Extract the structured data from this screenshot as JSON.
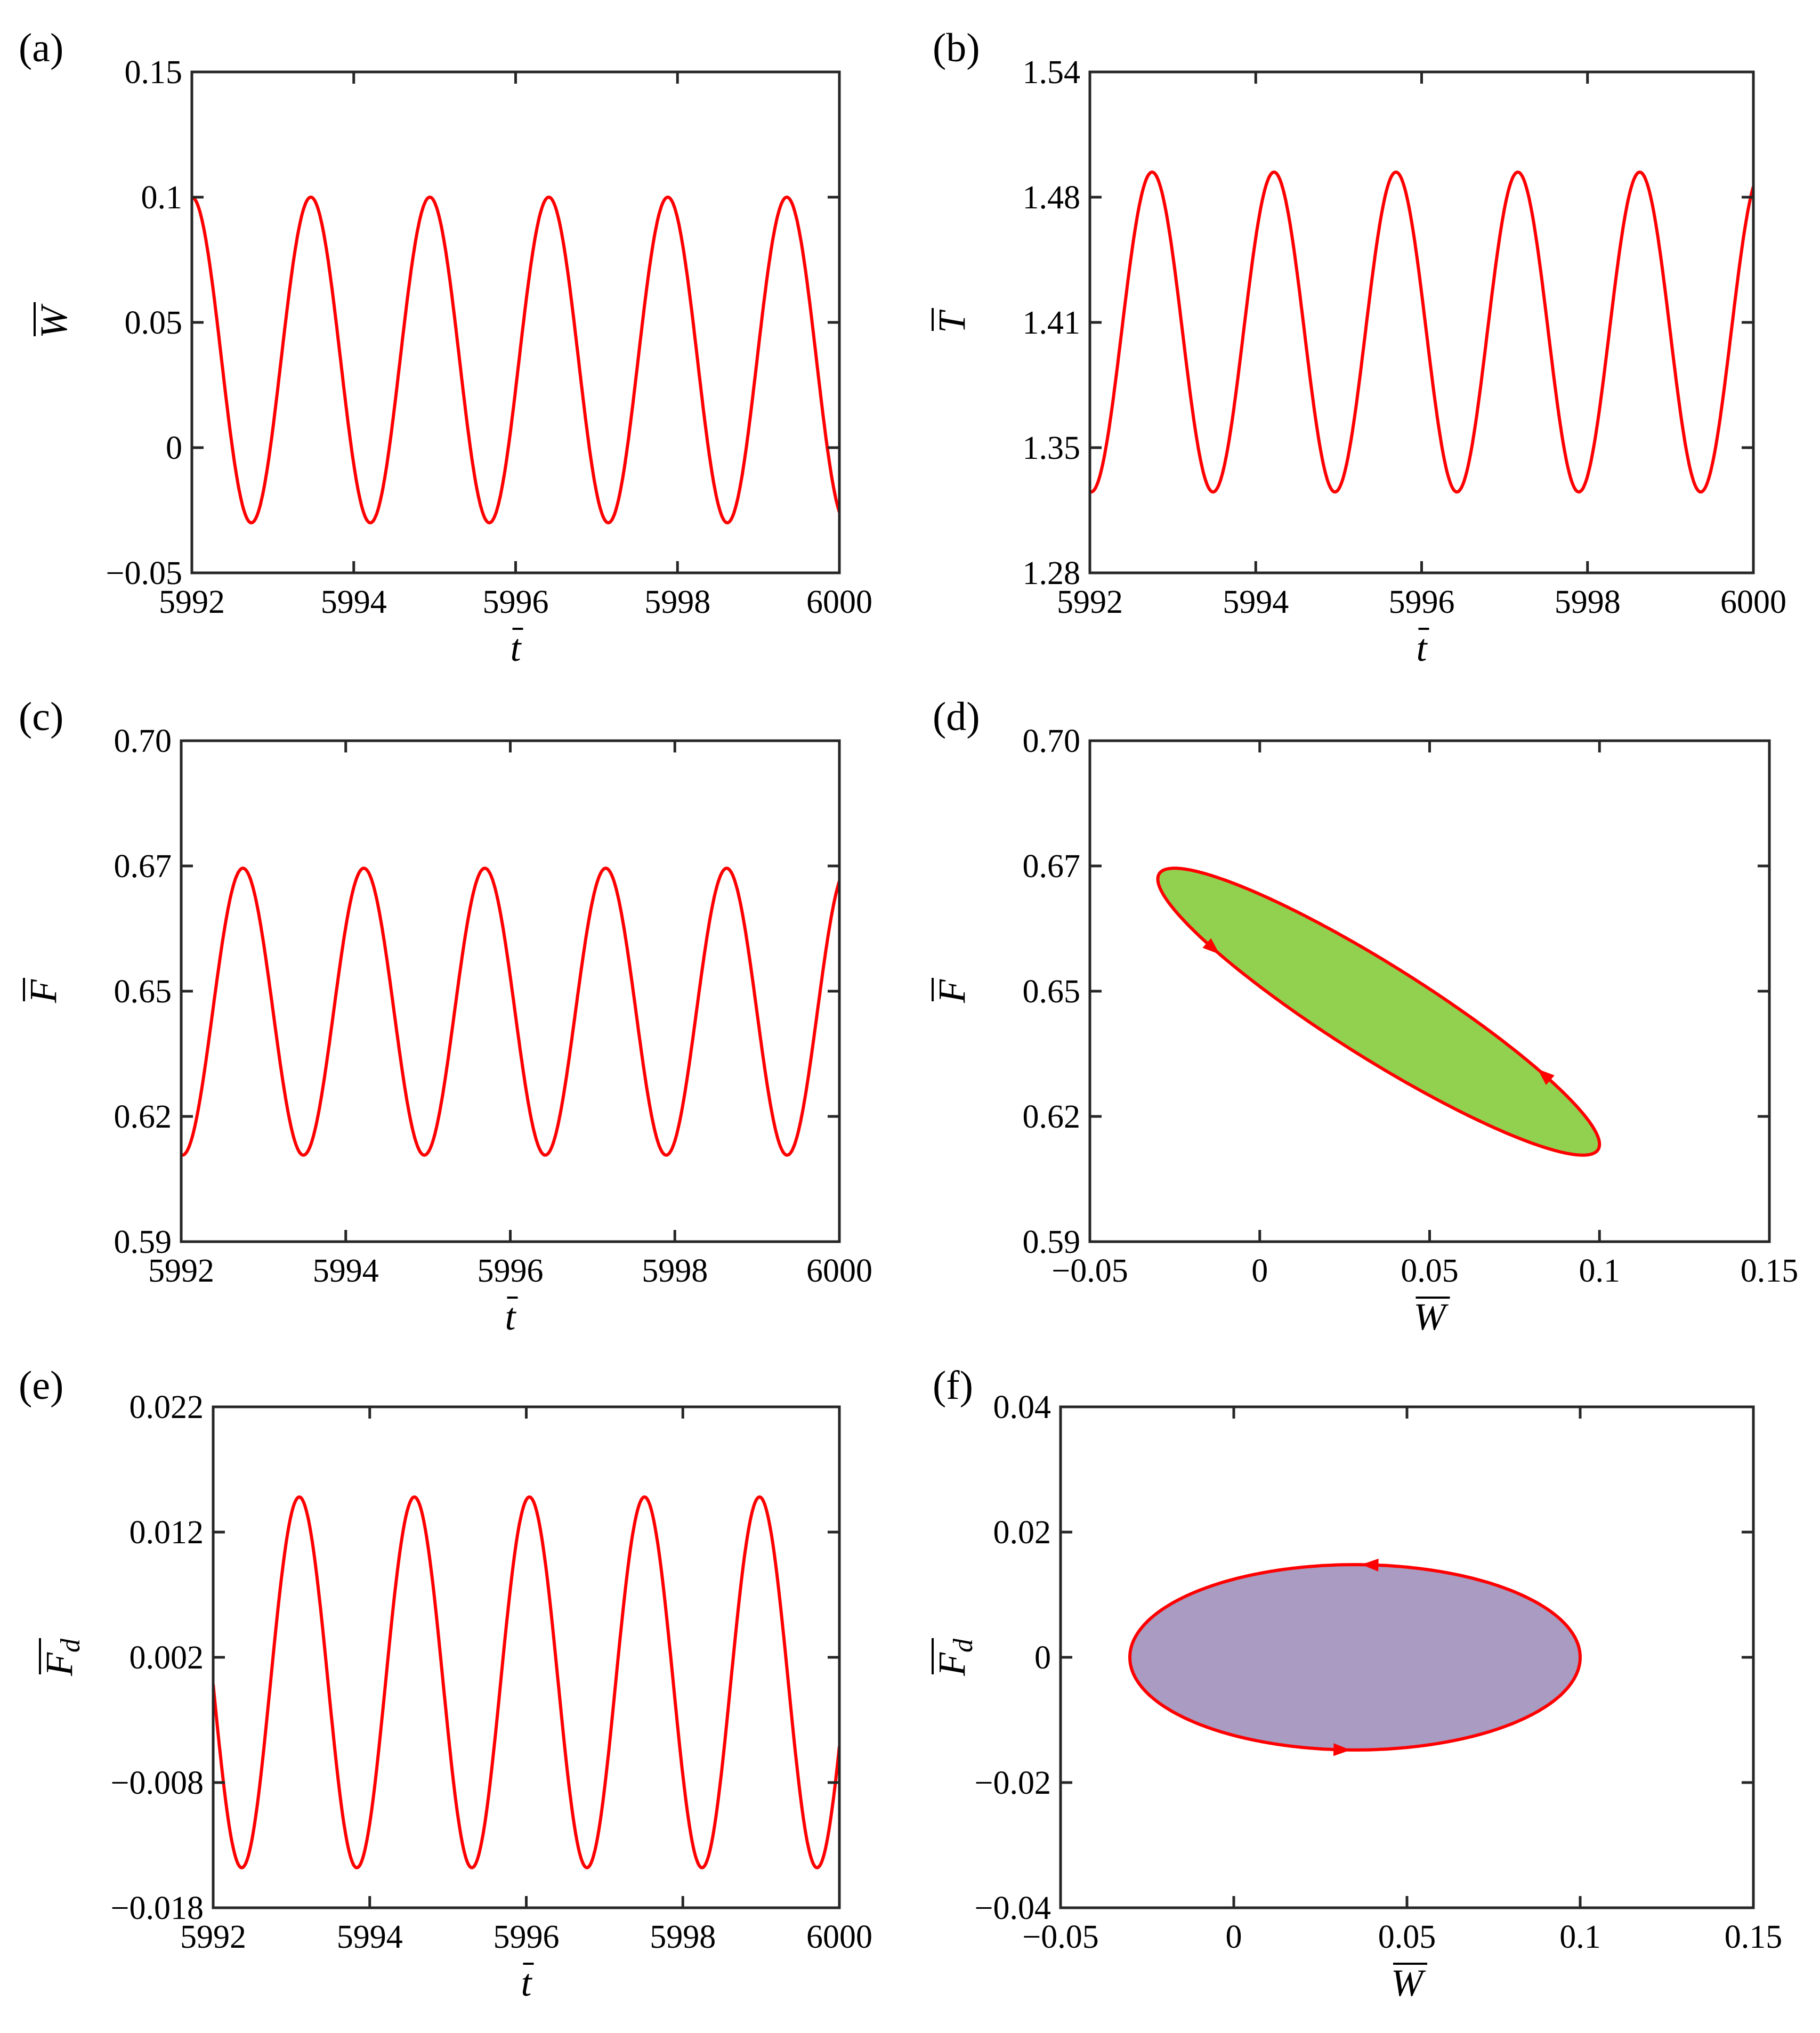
{
  "figure": {
    "line_color": "#ff0000",
    "panels": [
      {
        "id": "a",
        "label": "(a)",
        "xlabel": "t",
        "ylabel": "W",
        "ylabel_sub": "",
        "xticks": [
          "5992",
          "5994",
          "5996",
          "5998",
          "6000"
        ],
        "yticks": [
          "−0.05",
          "0",
          "0.05",
          "0.1",
          "0.15"
        ]
      },
      {
        "id": "b",
        "label": "(b)",
        "xlabel": "t",
        "ylabel": "T",
        "ylabel_sub": "",
        "xticks": [
          "5992",
          "5994",
          "5996",
          "5998",
          "6000"
        ],
        "yticks": [
          "1.28",
          "1.35",
          "1.41",
          "1.48",
          "1.54"
        ]
      },
      {
        "id": "c",
        "label": "(c)",
        "xlabel": "t",
        "ylabel": "F",
        "ylabel_sub": "",
        "xticks": [
          "5992",
          "5994",
          "5996",
          "5998",
          "6000"
        ],
        "yticks": [
          "0.59",
          "0.62",
          "0.65",
          "0.67",
          "0.70"
        ]
      },
      {
        "id": "d",
        "label": "(d)",
        "xlabel": "W",
        "ylabel": "F",
        "ylabel_sub": "",
        "xticks": [
          "−0.05",
          "0",
          "0.05",
          "0.1",
          "0.15"
        ],
        "yticks": [
          "0.59",
          "0.62",
          "0.65",
          "0.67",
          "0.70"
        ]
      },
      {
        "id": "e",
        "label": "(e)",
        "xlabel": "t",
        "ylabel": "F",
        "ylabel_sub": "d",
        "xticks": [
          "5992",
          "5994",
          "5996",
          "5998",
          "6000"
        ],
        "yticks": [
          "−0.018",
          "−0.008",
          "0.002",
          "0.012",
          "0.022"
        ]
      },
      {
        "id": "f",
        "label": "(f)",
        "xlabel": "W",
        "ylabel": "F",
        "ylabel_sub": "d",
        "xticks": [
          "−0.05",
          "0",
          "0.05",
          "0.1",
          "0.15"
        ],
        "yticks": [
          "−0.04",
          "−0.02",
          "0",
          "0.02",
          "0.04"
        ]
      }
    ]
  },
  "chart_data": [
    {
      "panel": "a",
      "type": "line",
      "title": "",
      "xlabel": "t̄",
      "ylabel": "W̄",
      "xlim": [
        5992,
        6000
      ],
      "ylim": [
        -0.05,
        0.15
      ],
      "series": [
        {
          "name": "W",
          "kind": "sine",
          "offset": 0.035,
          "amplitude": 0.065,
          "period": 1.47,
          "peak_t": 5992.0,
          "color": "#ff0000"
        }
      ]
    },
    {
      "panel": "b",
      "type": "line",
      "title": "",
      "xlabel": "t̄",
      "ylabel": "T̄",
      "xlim": [
        5992,
        6000
      ],
      "ylim": [
        1.28,
        1.54
      ],
      "series": [
        {
          "name": "T",
          "kind": "sine",
          "offset": 1.405,
          "amplitude": 0.083,
          "period": 1.47,
          "peak_t": 5992.75,
          "color": "#ff0000"
        }
      ]
    },
    {
      "panel": "c",
      "type": "line",
      "title": "",
      "xlabel": "t̄",
      "ylabel": "F̄",
      "xlim": [
        5992,
        6000
      ],
      "ylim": [
        0.59,
        0.7
      ],
      "series": [
        {
          "name": "F",
          "kind": "sine",
          "offset": 0.6405,
          "amplitude": 0.0315,
          "period": 1.47,
          "peak_t": 5992.75,
          "color": "#ff0000"
        }
      ]
    },
    {
      "panel": "d",
      "type": "area",
      "title": "",
      "xlabel": "W̄",
      "ylabel": "F̄",
      "xlim": [
        -0.05,
        0.15
      ],
      "ylim": [
        0.59,
        0.7
      ],
      "series": [
        {
          "name": "hysteresis loop",
          "kind": "loop",
          "x_center": 0.035,
          "x_amplitude": 0.065,
          "y_center": 0.6405,
          "y_amplitude": 0.0315,
          "phase_lag": 2.75,
          "fill": "#92d050",
          "color": "#ff0000",
          "arrows_phase": [
            0.72,
            3.86
          ]
        }
      ]
    },
    {
      "panel": "e",
      "type": "line",
      "title": "",
      "xlabel": "t̄",
      "ylabel": "F̄d",
      "xlim": [
        5992,
        6000
      ],
      "ylim": [
        -0.018,
        0.022
      ],
      "series": [
        {
          "name": "Fd",
          "kind": "sine",
          "offset": 0.0,
          "amplitude": 0.0148,
          "period": 1.47,
          "peak_t": 5993.1,
          "color": "#ff0000"
        }
      ]
    },
    {
      "panel": "f",
      "type": "area",
      "title": "",
      "xlabel": "W̄",
      "ylabel": "F̄d",
      "xlim": [
        -0.05,
        0.15
      ],
      "ylim": [
        -0.04,
        0.04
      ],
      "series": [
        {
          "name": "hysteresis loop",
          "kind": "loop",
          "x_center": 0.035,
          "x_amplitude": 0.065,
          "y_center": 0.0,
          "y_amplitude": 0.0148,
          "phase_lag": 1.5708,
          "fill": "#a99bc1",
          "color": "#ff0000",
          "arrows_phase": [
            1.5,
            4.65
          ]
        }
      ]
    }
  ]
}
